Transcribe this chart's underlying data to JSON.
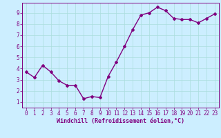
{
  "x": [
    0,
    1,
    2,
    3,
    4,
    5,
    6,
    7,
    8,
    9,
    10,
    11,
    12,
    13,
    14,
    15,
    16,
    17,
    18,
    19,
    20,
    21,
    22,
    23
  ],
  "y": [
    3.7,
    3.2,
    4.3,
    3.7,
    2.9,
    2.5,
    2.5,
    1.3,
    1.5,
    1.4,
    3.3,
    4.6,
    6.0,
    7.5,
    8.8,
    9.0,
    9.5,
    9.2,
    8.5,
    8.4,
    8.4,
    8.1,
    8.5,
    8.9
  ],
  "line_color": "#800080",
  "marker": "D",
  "marker_size": 2,
  "line_width": 1.0,
  "bg_color": "#cceeff",
  "grid_color": "#aadddd",
  "xlabel": "Windchill (Refroidissement éolien,°C)",
  "xlabel_color": "#800080",
  "tick_color": "#800080",
  "xlim": [
    -0.5,
    23.5
  ],
  "ylim": [
    0.5,
    9.9
  ],
  "yticks": [
    1,
    2,
    3,
    4,
    5,
    6,
    7,
    8,
    9
  ],
  "xticks": [
    0,
    1,
    2,
    3,
    4,
    5,
    6,
    7,
    8,
    9,
    10,
    11,
    12,
    13,
    14,
    15,
    16,
    17,
    18,
    19,
    20,
    21,
    22,
    23
  ],
  "tick_fontsize": 5.5,
  "xlabel_fontsize": 6.0
}
